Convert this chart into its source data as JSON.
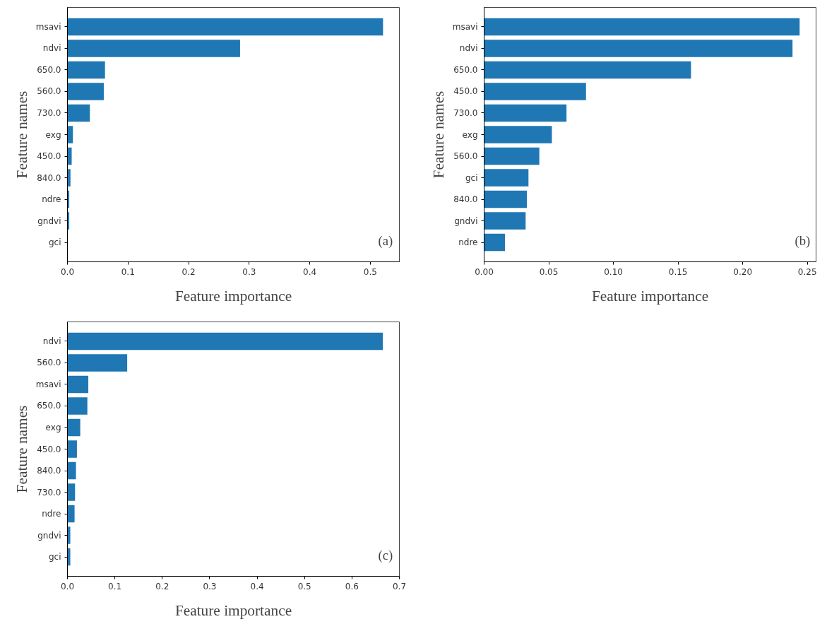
{
  "chart_data": [
    {
      "type": "bar",
      "orientation": "horizontal",
      "xlabel": "Feature importance",
      "ylabel": "Feature names",
      "annotations": [
        "(a)"
      ],
      "categories": [
        "msavi",
        "ndvi",
        "650.0",
        "560.0",
        "730.0",
        "exg",
        "450.0",
        "840.0",
        "ndre",
        "gndvi",
        "gci"
      ],
      "values": [
        0.521,
        0.285,
        0.062,
        0.06,
        0.037,
        0.009,
        0.007,
        0.005,
        0.003,
        0.003,
        0
      ],
      "color": "#1f77b4",
      "xlim": [
        0,
        0.548
      ],
      "xticks": [
        {
          "value": 0,
          "label": "0.0"
        },
        0.1,
        0.2,
        0.3,
        0.4,
        0.5
      ],
      "grid": false
    },
    {
      "type": "bar",
      "orientation": "horizontal",
      "xlabel": "Feature importance",
      "ylabel": "Feature names",
      "annotations": [
        "(b)"
      ],
      "categories": [
        "msavi",
        "ndvi",
        "650.0",
        "450.0",
        "730.0",
        "exg",
        "560.0",
        "gci",
        "840.0",
        "gndvi",
        "ndre"
      ],
      "values": [
        0.244,
        0.2385,
        0.16,
        0.0788,
        0.0637,
        0.0524,
        0.0427,
        0.0343,
        0.0331,
        0.0321,
        0.0161
      ],
      "color": "#1f77b4",
      "xlim": [
        0,
        0.2567
      ],
      "xticks": [
        {
          "value": 0,
          "label": "0.00"
        },
        0.05,
        {
          "value": 0.1,
          "label": "0.10"
        },
        0.15,
        {
          "value": 0.2,
          "label": "0.20"
        },
        0.25
      ],
      "grid": false
    },
    {
      "type": "bar",
      "orientation": "horizontal",
      "xlabel": "Feature importance",
      "ylabel": "Feature names",
      "annotations": [
        "(c)"
      ],
      "categories": [
        "ndvi",
        "560.0",
        "msavi",
        "650.0",
        "exg",
        "450.0",
        "840.0",
        "730.0",
        "ndre",
        "gndvi",
        "gci"
      ],
      "values": [
        0.665,
        0.126,
        0.044,
        0.042,
        0.027,
        0.02,
        0.018,
        0.016,
        0.015,
        0.006,
        0.006
      ],
      "color": "#1f77b4",
      "xlim": [
        0,
        0.7
      ],
      "xticks": [
        {
          "value": 0,
          "label": "0.0"
        },
        0.1,
        0.2,
        0.3,
        0.4,
        0.5,
        0.6,
        0.7
      ],
      "grid": false
    }
  ]
}
